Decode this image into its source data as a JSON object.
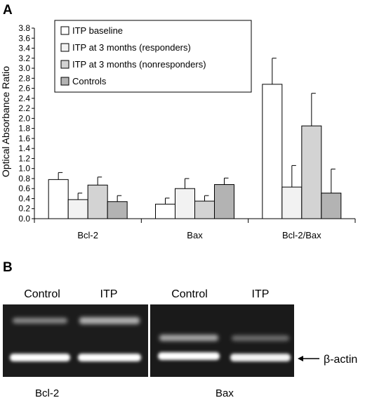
{
  "panels": {
    "a_label": "A",
    "b_label": "B"
  },
  "chart_data": {
    "type": "bar",
    "title": "",
    "xlabel": "",
    "ylabel": "Optical Absorbance Ratio",
    "ylim": [
      0,
      3.8
    ],
    "ytick_step": 0.2,
    "grid": false,
    "legend_position": "top-left",
    "categories": [
      "Bcl-2",
      "Bax",
      "Bcl-2/Bax"
    ],
    "series": [
      {
        "name": "ITP baseline",
        "color": "#ffffff",
        "values": [
          0.78,
          0.29,
          2.68
        ],
        "errors": [
          0.14,
          0.12,
          0.52
        ]
      },
      {
        "name": "ITP at 3 months (responders)",
        "color": "#f2f2f2",
        "values": [
          0.38,
          0.6,
          0.63
        ],
        "errors": [
          0.13,
          0.2,
          0.43
        ]
      },
      {
        "name": "ITP at 3 months (nonresponders)",
        "color": "#d3d3d3",
        "values": [
          0.67,
          0.35,
          1.85
        ],
        "errors": [
          0.16,
          0.11,
          0.65
        ]
      },
      {
        "name": "Controls",
        "color": "#b3b3b3",
        "values": [
          0.34,
          0.68,
          0.51
        ],
        "errors": [
          0.12,
          0.13,
          0.48
        ]
      }
    ]
  },
  "gel": {
    "left": {
      "lanes": [
        "Control",
        "ITP"
      ],
      "caption": "Bcl-2"
    },
    "right": {
      "lanes": [
        "Control",
        "ITP"
      ],
      "caption": "Bax"
    },
    "actin_label": "β-actin"
  }
}
